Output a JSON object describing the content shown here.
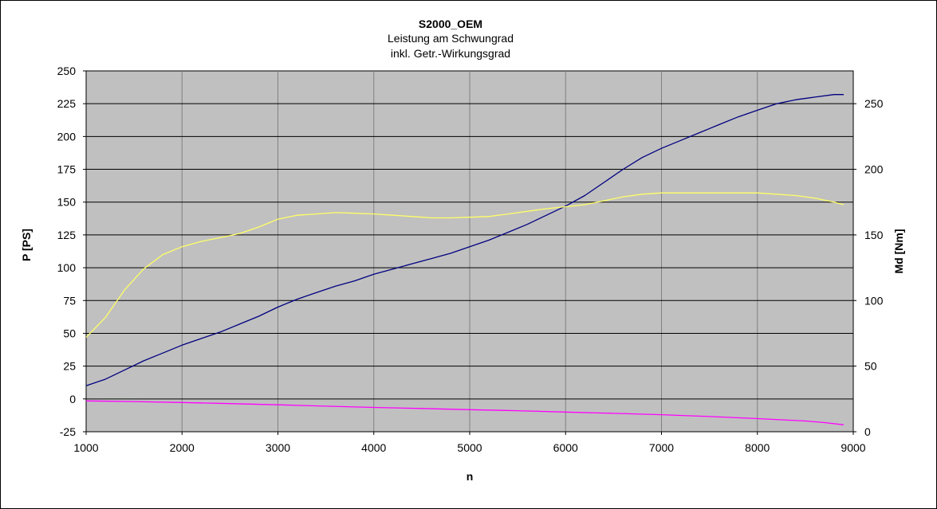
{
  "chart_data": {
    "type": "line",
    "title": "S2000_OEM",
    "subtitle_lines": [
      "Leistung am Schwungrad",
      "inkl. Getr.-Wirkungsgrad"
    ],
    "xlabel": "n",
    "ylabel_left": "P [PS]",
    "ylabel_right": "Md [Nm]",
    "xlim": [
      1000,
      9000
    ],
    "ylim_left": [
      -25,
      250
    ],
    "ylim_right": [
      0,
      275
    ],
    "x_ticks": [
      "1000",
      "2000",
      "3000",
      "4000",
      "5000",
      "6000",
      "7000",
      "8000",
      "9000"
    ],
    "y_ticks_left": [
      "250",
      "225",
      "200",
      "175",
      "150",
      "125",
      "100",
      "75",
      "50",
      "25",
      "0",
      "-25"
    ],
    "y_ticks_right": [
      "250",
      "200",
      "150",
      "100",
      "50",
      "0"
    ],
    "grid": true,
    "colors": {
      "plot_background": "#C0C0C0",
      "grid": "#000000",
      "power": "#000080",
      "torque": "#FFFF66",
      "loss": "#FF00FF"
    },
    "series": [
      {
        "axis": "left",
        "color_key": "power",
        "x": [
          1000,
          1200,
          1400,
          1600,
          1800,
          2000,
          2200,
          2400,
          2600,
          2800,
          3000,
          3200,
          3400,
          3600,
          3800,
          4000,
          4200,
          4400,
          4600,
          4800,
          5000,
          5200,
          5400,
          5600,
          5800,
          6000,
          6200,
          6400,
          6600,
          6800,
          7000,
          7200,
          7400,
          7600,
          7800,
          8000,
          8200,
          8400,
          8600,
          8800,
          8900
        ],
        "values": [
          10,
          15,
          22,
          29,
          35,
          41,
          46,
          51,
          57,
          63,
          70,
          76,
          81,
          86,
          90,
          95,
          99,
          103,
          107,
          111,
          116,
          121,
          127,
          133,
          140,
          147,
          155,
          165,
          175,
          184,
          191,
          197,
          203,
          209,
          215,
          220,
          225,
          228,
          230,
          232,
          232
        ]
      },
      {
        "axis": "right",
        "color_key": "torque",
        "x": [
          1000,
          1200,
          1400,
          1600,
          1800,
          2000,
          2200,
          2400,
          2600,
          2800,
          3000,
          3200,
          3400,
          3600,
          3800,
          4000,
          4200,
          4400,
          4600,
          4800,
          5000,
          5200,
          5400,
          5600,
          5800,
          6000,
          6200,
          6400,
          6600,
          6800,
          7000,
          7200,
          7400,
          7600,
          7800,
          8000,
          8200,
          8400,
          8600,
          8800,
          8900
        ],
        "values": [
          72,
          87,
          108,
          124,
          135,
          141,
          145,
          148,
          151,
          156,
          162,
          165,
          166,
          167,
          166.5,
          166,
          165,
          164,
          163,
          163,
          163.5,
          164,
          166,
          168,
          170,
          171.5,
          173,
          176,
          179,
          181,
          182,
          182,
          182,
          182,
          182,
          182,
          181,
          180,
          178,
          175,
          173
        ]
      },
      {
        "axis": "left",
        "color_key": "loss",
        "x": [
          1000,
          1500,
          2000,
          2500,
          3000,
          3500,
          4000,
          4500,
          5000,
          5500,
          6000,
          6500,
          7000,
          7500,
          8000,
          8500,
          8700,
          8900
        ],
        "values": [
          -1.5,
          -2,
          -2.7,
          -3.6,
          -4.5,
          -5.5,
          -6.5,
          -7.3,
          -8.2,
          -9,
          -10,
          -11,
          -12,
          -13.4,
          -15,
          -16.8,
          -18,
          -19.7
        ]
      }
    ]
  }
}
